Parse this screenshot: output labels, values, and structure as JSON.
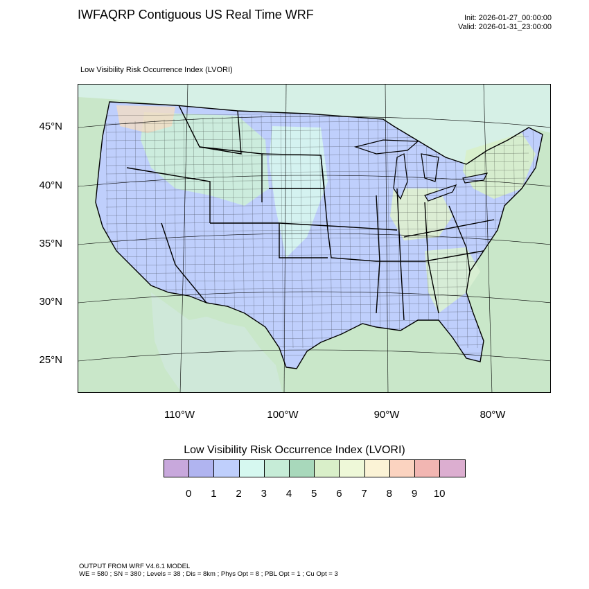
{
  "header": {
    "title": "IWFAQRP Contiguous US Real Time WRF",
    "init": "Init: 2026-01-27_00:00:00",
    "valid": "Valid: 2026-01-31_23:00:00"
  },
  "field_label": "Low Visibility Risk Occurrence Index   (LVORI)",
  "map": {
    "lat_labels": [
      "45°N",
      "40°N",
      "35°N",
      "30°N",
      "25°N"
    ],
    "lon_labels": [
      "110°W",
      "100°W",
      "90°W",
      "80°W"
    ],
    "colors": {
      "ocean": "#c9e7c9",
      "land_low": "#bfcffc",
      "land_mid": "#d6f5ee",
      "land_green": "#c8ecd2",
      "land_yellow": "#eef6d3",
      "land_orange": "#f7dcc6",
      "borders": "#000000"
    }
  },
  "legend": {
    "title": "Low Visibility Risk Occurrence Index  (LVORI)",
    "ticks": [
      "0",
      "1",
      "2",
      "3",
      "4",
      "5",
      "6",
      "7",
      "8",
      "9",
      "10"
    ],
    "colors": [
      "#c8a8dc",
      "#b0b4f0",
      "#bfcffc",
      "#d6f8f0",
      "#c6ecd7",
      "#a8d8bb",
      "#d9efc9",
      "#eef8d8",
      "#fbf3d6",
      "#fbd3c0",
      "#f2b6b2",
      "#dcaed0"
    ]
  },
  "footer": {
    "line1": "OUTPUT FROM WRF V4.6.1 MODEL",
    "line2": "WE = 580 ; SN = 380 ; Levels = 38 ; Dis = 8km ; Phys Opt = 8 ; PBL Opt = 1 ; Cu Opt = 3"
  }
}
